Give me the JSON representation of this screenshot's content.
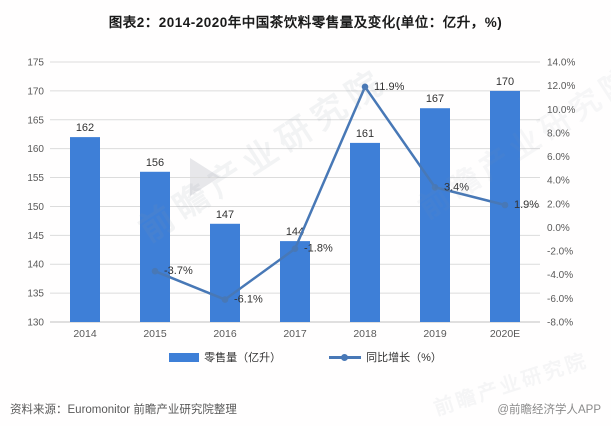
{
  "title": "图表2：2014-2020年中国茶饮料零售量及变化(单位：亿升，%)",
  "chart_data": {
    "type": "bar+line combo",
    "categories": [
      "2014",
      "2015",
      "2016",
      "2017",
      "2018",
      "2019",
      "2020E"
    ],
    "series": [
      {
        "name": "零售量（亿升）",
        "type": "bar",
        "axis": "left",
        "values": [
          162,
          156,
          147,
          144,
          161,
          167,
          170
        ],
        "labels": [
          "162",
          "156",
          "147",
          "144",
          "161",
          "167",
          "170"
        ]
      },
      {
        "name": "同比增长（%）",
        "type": "line",
        "axis": "right",
        "values": [
          null,
          -3.7,
          -6.1,
          -1.8,
          11.9,
          3.4,
          1.9
        ],
        "labels": [
          null,
          "-3.7%",
          "-6.1%",
          "-1.8%",
          "11.9%",
          "3.4%",
          "1.9%"
        ]
      }
    ],
    "left_axis": {
      "min": 130,
      "max": 175,
      "step": 5,
      "ticks": [
        "175",
        "170",
        "165",
        "160",
        "155",
        "150",
        "145",
        "140",
        "135",
        "130"
      ]
    },
    "right_axis": {
      "min": -8,
      "max": 14,
      "step": 2,
      "ticks": [
        "14.0%",
        "12.0%",
        "10.0%",
        "8.0%",
        "6.0%",
        "4.0%",
        "2.0%",
        "0.0%",
        "-2.0%",
        "-4.0%",
        "-6.0%",
        "-8.0%"
      ]
    },
    "grid": true,
    "legend_position": "bottom"
  },
  "legend": {
    "items": [
      {
        "label": "零售量（亿升）",
        "marker": "bar-swatch"
      },
      {
        "label": "同比增长（%）",
        "marker": "line-dot-swatch"
      }
    ]
  },
  "footer": {
    "source": "资料来源：Euromonitor 前瞻产业研究院整理",
    "credit": "@前瞻经济学人APP"
  },
  "watermark": {
    "text": "前瞻产业研究院"
  },
  "colors": {
    "bar": "#3E7FD7",
    "line": "#4878B6",
    "grid": "#DCDCDC",
    "axis_bottom": "#C0C0C0",
    "axis_text": "#595959",
    "label_text": "#333333",
    "title": "#1A1A1A",
    "footer_text": "#595959"
  }
}
